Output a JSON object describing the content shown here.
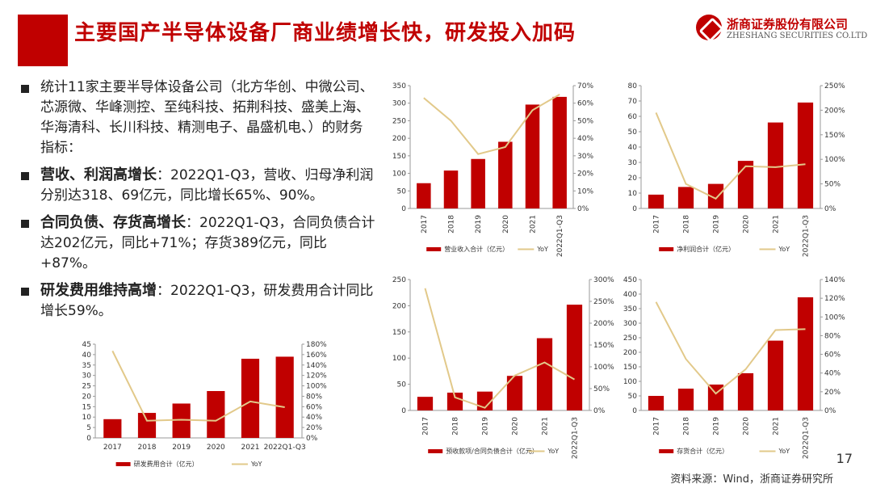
{
  "header": {
    "title": "主要国产半导体设备厂商业绩增长快，研发投入加码",
    "logo_cn": "浙商证券股份有限公司",
    "logo_en": "ZHESHANG SECURITIES CO.LTD",
    "brand_color": "#c00000"
  },
  "bullets": [
    {
      "lead": "",
      "text": "统计11家主要半导体设备公司（北方华创、中微公司、芯源微、华峰测控、至纯科技、拓荆科技、盛美上海、华海清科、长川科技、精测电子、晶盛机电、）的财务指标："
    },
    {
      "lead": "营收、利润高增长",
      "text": "：2022Q1-Q3，营收、归母净利润分别达318、69亿元，同比增长65%、90%。"
    },
    {
      "lead": "合同负债、存货高增长",
      "text": "：2022Q1-Q3，合同负债合计达202亿元，同比+71%；存货389亿元，同比+87%。"
    },
    {
      "lead": "研发费用维持高增",
      "text": "：2022Q1-Q3，研发费用合计同比增长59%。"
    }
  ],
  "footer": {
    "page_number": "17",
    "source": "资料来源：Wind，浙商证券研究所"
  },
  "colors": {
    "bar": "#c00000",
    "line": "#e2c98a"
  },
  "chart_data": [
    {
      "id": "revenue",
      "type": "bar",
      "categories": [
        "2017",
        "2018",
        "2019",
        "2020",
        "2021",
        "2022Q1-Q3"
      ],
      "series": [
        {
          "name": "营业收入合计（亿元）",
          "type": "bar",
          "axis": "left",
          "values": [
            72,
            108,
            141,
            190,
            296,
            318
          ]
        },
        {
          "name": "YoY",
          "type": "line",
          "axis": "right",
          "values": [
            0.63,
            0.5,
            0.31,
            0.35,
            0.56,
            0.65
          ]
        }
      ],
      "yleft": {
        "min": 0,
        "max": 350,
        "step": 50,
        "ticks": [
          "0",
          "50",
          "100",
          "150",
          "200",
          "250",
          "300",
          "350"
        ]
      },
      "yright": {
        "min": 0,
        "max": 0.7,
        "step": 0.1,
        "ticks": [
          "0%",
          "10%",
          "20%",
          "30%",
          "40%",
          "50%",
          "60%",
          "70%"
        ]
      },
      "rotate_x_labels": true
    },
    {
      "id": "net_profit",
      "type": "bar",
      "categories": [
        "2017",
        "2018",
        "2019",
        "2020",
        "2021",
        "2022Q1-Q3"
      ],
      "series": [
        {
          "name": "净利润合计（亿元）",
          "type": "bar",
          "axis": "left",
          "values": [
            9,
            14,
            16,
            31,
            56,
            69
          ]
        },
        {
          "name": "YoY",
          "type": "line",
          "axis": "right",
          "values": [
            1.95,
            0.5,
            0.2,
            0.86,
            0.84,
            0.9
          ]
        }
      ],
      "yleft": {
        "min": 0,
        "max": 80,
        "step": 10,
        "ticks": [
          "0",
          "10",
          "20",
          "30",
          "40",
          "50",
          "60",
          "70",
          "80"
        ]
      },
      "yright": {
        "min": 0,
        "max": 2.5,
        "step": 0.5,
        "ticks": [
          "0%",
          "50%",
          "100%",
          "150%",
          "200%",
          "250%"
        ]
      },
      "rotate_x_labels": true
    },
    {
      "id": "contract_liabilities",
      "type": "bar",
      "categories": [
        "2017",
        "2018",
        "2019",
        "2020",
        "2021",
        "2022Q1-Q3"
      ],
      "series": [
        {
          "name": "预收款项/合同负债合计（亿元）",
          "type": "bar",
          "axis": "left",
          "values": [
            26,
            34,
            36,
            66,
            138,
            202
          ]
        },
        {
          "name": "YoY",
          "type": "line",
          "axis": "right",
          "values": [
            2.8,
            0.3,
            0.06,
            0.8,
            1.1,
            0.71
          ]
        }
      ],
      "yleft": {
        "min": 0,
        "max": 250,
        "step": 50,
        "ticks": [
          "0",
          "50",
          "100",
          "150",
          "200",
          "250"
        ]
      },
      "yright": {
        "min": 0,
        "max": 3.0,
        "step": 0.5,
        "ticks": [
          "0%",
          "50%",
          "100%",
          "150%",
          "200%",
          "250%",
          "300%"
        ]
      },
      "rotate_x_labels": true
    },
    {
      "id": "inventory",
      "type": "bar",
      "categories": [
        "2017",
        "2018",
        "2019",
        "2020",
        "2021",
        "2022Q1-Q3"
      ],
      "series": [
        {
          "name": "存货合计（亿元）",
          "type": "bar",
          "axis": "left",
          "values": [
            50,
            75,
            89,
            128,
            240,
            389
          ]
        },
        {
          "name": "YoY",
          "type": "line",
          "axis": "right",
          "values": [
            1.16,
            0.55,
            0.18,
            0.44,
            0.86,
            0.87
          ]
        }
      ],
      "yleft": {
        "min": 0,
        "max": 450,
        "step": 50,
        "ticks": [
          "0",
          "50",
          "100",
          "150",
          "200",
          "250",
          "300",
          "350",
          "400",
          "450"
        ]
      },
      "yright": {
        "min": 0,
        "max": 1.4,
        "step": 0.2,
        "ticks": [
          "0%",
          "20%",
          "40%",
          "60%",
          "80%",
          "100%",
          "120%",
          "140%"
        ]
      },
      "rotate_x_labels": true
    },
    {
      "id": "rnd",
      "type": "bar",
      "categories": [
        "2017",
        "2018",
        "2019",
        "2020",
        "2021",
        "2022Q1-Q3"
      ],
      "series": [
        {
          "name": "研发费用合计（亿元）",
          "type": "bar",
          "axis": "left",
          "values": [
            9,
            12,
            16.5,
            22.5,
            38,
            39
          ]
        },
        {
          "name": "YoY",
          "type": "line",
          "axis": "right",
          "values": [
            1.67,
            0.33,
            0.35,
            0.33,
            0.7,
            0.59
          ]
        }
      ],
      "yleft": {
        "min": 0,
        "max": 45,
        "step": 5,
        "ticks": [
          "0",
          "5",
          "10",
          "15",
          "20",
          "25",
          "30",
          "35",
          "40",
          "45"
        ]
      },
      "yright": {
        "min": 0,
        "max": 1.8,
        "step": 0.2,
        "ticks": [
          "0%",
          "20%",
          "40%",
          "60%",
          "80%",
          "100%",
          "120%",
          "140%",
          "160%",
          "180%"
        ]
      },
      "rotate_x_labels": false
    }
  ]
}
